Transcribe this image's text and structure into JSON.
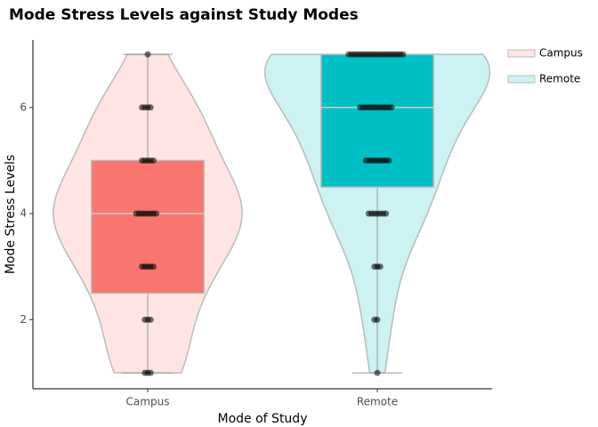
{
  "chart_data": {
    "type": "violin",
    "title": "Mode Stress Levels against Study Modes",
    "x_label": "Mode of Study",
    "y_label": "Mode Stress Levels",
    "categories": [
      "Campus",
      "Remote"
    ],
    "series": [
      {
        "name": "Campus",
        "color": "#F8766D",
        "values": [
          1,
          1,
          1,
          2,
          2,
          2,
          3,
          3,
          3,
          3,
          3,
          4,
          4,
          4,
          4,
          4,
          4,
          4,
          4,
          5,
          5,
          5,
          5,
          5,
          6,
          6,
          6,
          6,
          7
        ],
        "box": {
          "min": 1,
          "q1": 2.5,
          "median": 4,
          "q3": 5,
          "max": 7
        }
      },
      {
        "name": "Remote",
        "color": "#00BFC4",
        "values": [
          1,
          2,
          2,
          3,
          3,
          3,
          4,
          4,
          4,
          4,
          4,
          4,
          4,
          5,
          5,
          5,
          5,
          5,
          5,
          5,
          5,
          5,
          6,
          6,
          6,
          6,
          6,
          6,
          6,
          6,
          6,
          6,
          6,
          6,
          7,
          7,
          7,
          7,
          7,
          7,
          7,
          7,
          7,
          7,
          7,
          7,
          7,
          7,
          7,
          7,
          7,
          7,
          7,
          7
        ],
        "box": {
          "min": 1,
          "q1": 4.5,
          "median": 6,
          "q3": 7,
          "max": 7
        }
      }
    ],
    "ylim": [
      0.7,
      7.27
    ],
    "yticks": [
      2,
      4,
      6
    ],
    "legend": "right"
  }
}
